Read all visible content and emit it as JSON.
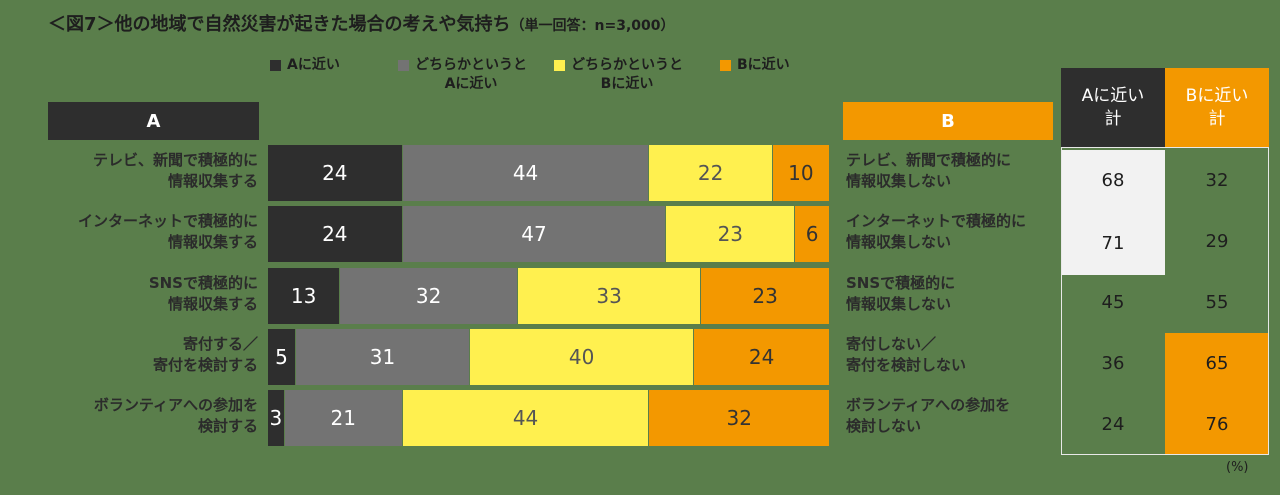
{
  "title": "＜図7＞他の地域で自然災害が起きた場合の考えや気持ち",
  "subtitle": "（単一回答：n=3,000）",
  "header_a": "A",
  "header_b": "B",
  "colors": {
    "a_close": "#2e2e2e",
    "somewhat_a": "#737373",
    "somewhat_b": "#fff04f",
    "b_close": "#f39800",
    "background": "#5a7e4b"
  },
  "chart_data": {
    "type": "bar",
    "orientation": "horizontal-stacked-100",
    "legend_position": "top",
    "series": [
      {
        "name": "Aに近い",
        "label_lines": [
          "Aに近い"
        ],
        "values": [
          24,
          24,
          13,
          5,
          3
        ]
      },
      {
        "name": "どちらかというとAに近い",
        "label_lines": [
          "どちらかというと",
          "Aに近い"
        ],
        "values": [
          44,
          47,
          32,
          31,
          21
        ]
      },
      {
        "name": "どちらかというとBに近い",
        "label_lines": [
          "どちらかというと",
          "Bに近い"
        ],
        "values": [
          22,
          23,
          33,
          40,
          44
        ]
      },
      {
        "name": "Bに近い",
        "label_lines": [
          "Bに近い"
        ],
        "values": [
          10,
          6,
          23,
          24,
          32
        ]
      }
    ],
    "categories_a": [
      [
        "テレビ、新聞で積極的に",
        "情報収集する"
      ],
      [
        "インターネットで積極的に",
        "情報収集する"
      ],
      [
        "SNSで積極的に",
        "情報収集する"
      ],
      [
        "寄付する／",
        "寄付を検討する"
      ],
      [
        "ボランティアへの参加を",
        "検討する"
      ]
    ],
    "categories_b": [
      [
        "テレビ、新聞で積極的に",
        "情報収集しない"
      ],
      [
        "インターネットで積極的に",
        "情報収集しない"
      ],
      [
        "SNSで積極的に",
        "情報収集しない"
      ],
      [
        "寄付しない／",
        "寄付を検討しない"
      ],
      [
        "ボランティアへの参加を",
        "検討しない"
      ]
    ]
  },
  "table": {
    "header_a_lines": [
      "Aに近い",
      "計"
    ],
    "header_b_lines": [
      "Bに近い",
      "計"
    ],
    "a_totals": [
      68,
      71,
      45,
      36,
      24
    ],
    "b_totals": [
      32,
      29,
      55,
      65,
      76
    ],
    "a_highlight": [
      true,
      true,
      false,
      false,
      false
    ],
    "b_highlight": [
      false,
      false,
      false,
      true,
      true
    ]
  },
  "unit": "(%)"
}
